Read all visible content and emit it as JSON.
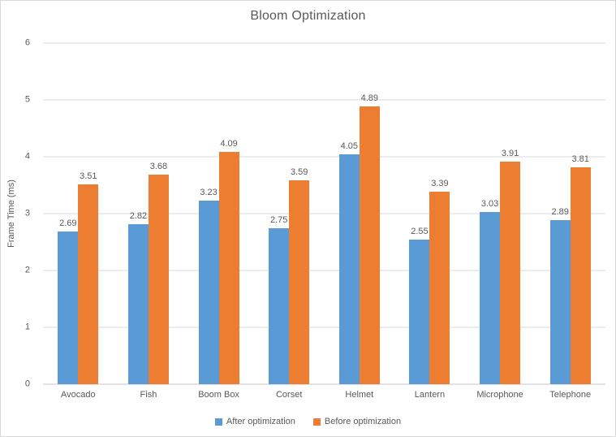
{
  "chart_data": {
    "type": "bar",
    "title": "Bloom Optimization",
    "xlabel": "",
    "ylabel": "Frame Time (ms)",
    "categories": [
      "Avocado",
      "Fish",
      "Boom Box",
      "Corset",
      "Helmet",
      "Lantern",
      "Microphone",
      "Telephone"
    ],
    "series": [
      {
        "name": "After optimization",
        "color": "#5B9BD5",
        "values": [
          2.69,
          2.82,
          3.23,
          2.75,
          4.05,
          2.55,
          3.03,
          2.89
        ]
      },
      {
        "name": "Before optimization",
        "color": "#ED7D31",
        "values": [
          3.51,
          3.68,
          4.09,
          3.59,
          4.89,
          3.39,
          3.91,
          3.81
        ]
      }
    ],
    "ylim": [
      0,
      6
    ],
    "yticks": [
      0,
      1,
      2,
      3,
      4,
      5,
      6
    ],
    "grid": true,
    "data_labels": true,
    "legend_position": "bottom"
  },
  "colors": {
    "series_after": "#5B9BD5",
    "series_before": "#ED7D31",
    "gridline": "#D9D9D9",
    "axis_line": "#C6C6C6",
    "text": "#595959",
    "frame_border": "#D9D9D9",
    "background": "#FFFFFF"
  }
}
